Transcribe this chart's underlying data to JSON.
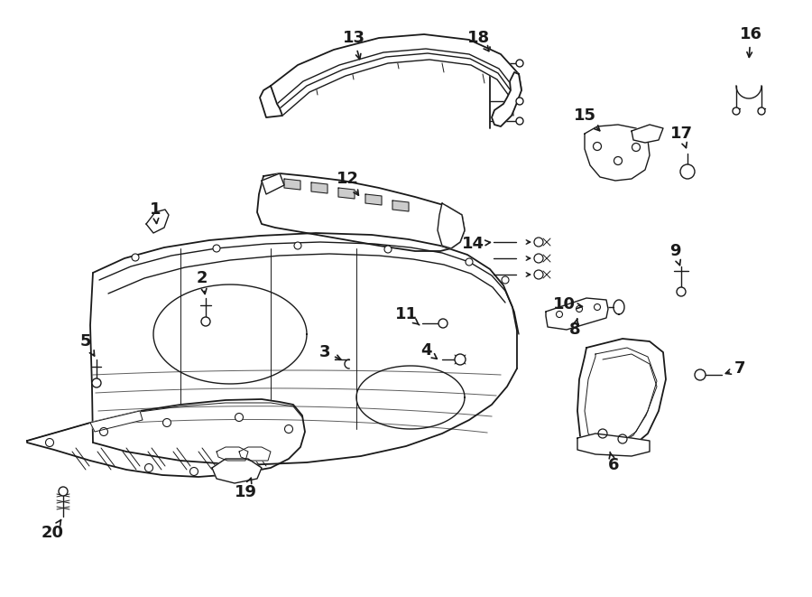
{
  "background_color": "#ffffff",
  "line_color": "#1a1a1a",
  "label_color": "#1a1a1a",
  "fig_width": 9.0,
  "fig_height": 6.61,
  "dpi": 100,
  "label_fontsize": 13
}
